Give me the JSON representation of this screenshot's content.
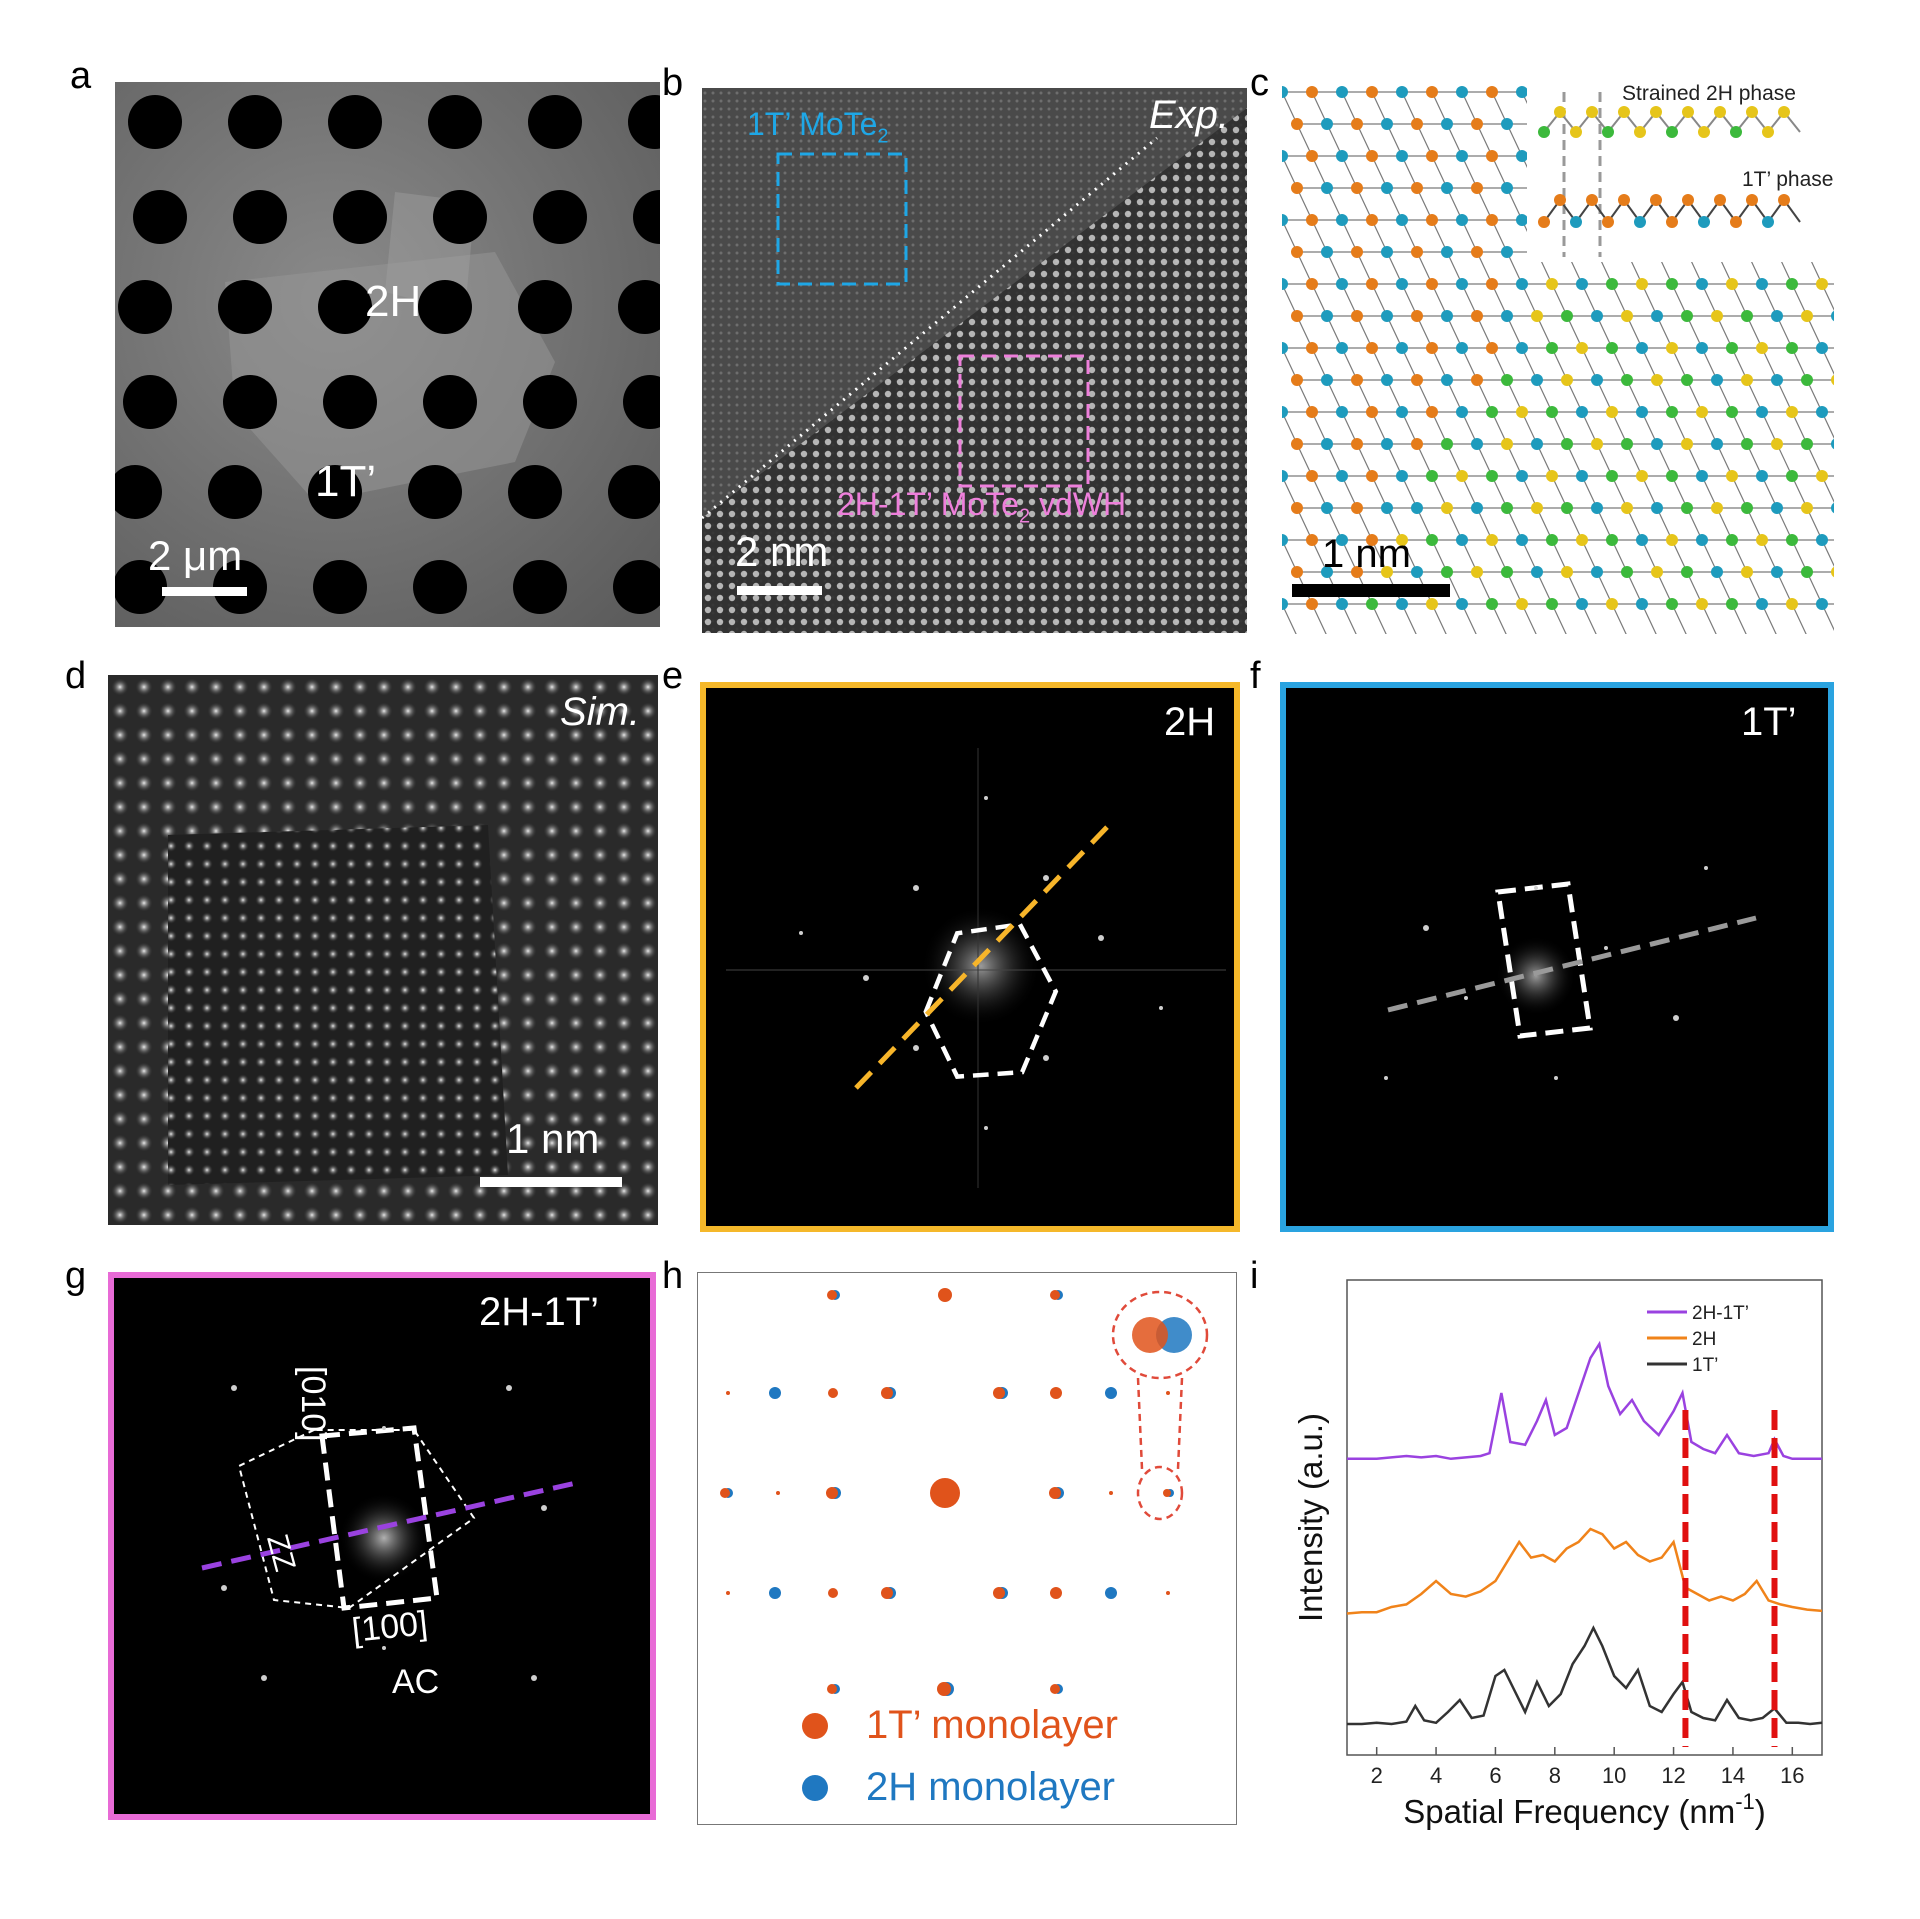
{
  "panel_letters": [
    "a",
    "b",
    "c",
    "d",
    "e",
    "f",
    "g",
    "h",
    "i"
  ],
  "a": {
    "label_2h": "2H",
    "label_1t": "1T’",
    "scale": "2 μm"
  },
  "b": {
    "label_1t": "1T’ MoTe",
    "label_1t_sub": "2",
    "label_vdwh": "2H-1T’ MoTe",
    "label_vdwh_sub": "2",
    "label_vdwh_tail": " vdWH",
    "exp": "Exp.",
    "scale": "2 nm"
  },
  "c": {
    "strained": "Strained 2H phase",
    "phase_1t": "1T’ phase",
    "scale": "1 nm"
  },
  "d": {
    "sim": "Sim.",
    "scale": "1 nm"
  },
  "e": {
    "label": "2H",
    "frame_color": "#f5b82a",
    "line_color": "#f7b52a"
  },
  "f": {
    "label": "1T’",
    "frame_color": "#2aa3e0"
  },
  "g": {
    "label": "2H-1T’",
    "frame_color": "#e86bd6",
    "dir_010": "[010]",
    "dir_100": "[100]",
    "zz": "ZZ",
    "ac": "AC"
  },
  "h": {
    "legend_1t": "1T’ monolayer",
    "legend_2h": "2H monolayer",
    "color_1t": "#e0531b",
    "color_2h": "#1f78c1"
  },
  "chart_data": {
    "type": "line",
    "xlabel": "Spatial Frequency (nm",
    "xlabel_sup": "-1",
    "xlabel_tail": ")",
    "ylabel": "Intensity (a.u.)",
    "xlim": [
      1,
      17
    ],
    "xticks": [
      "2",
      "4",
      "6",
      "8",
      "10",
      "12",
      "14",
      "16"
    ],
    "legend": [
      "2H-1T’",
      "2H",
      "1T’"
    ],
    "reference_lines_x": [
      12.4,
      15.4
    ],
    "series": [
      {
        "name": "2H-1T’",
        "color": "#9a42e0",
        "x": [
          1,
          2,
          3,
          3.5,
          4,
          4.5,
          5,
          5.5,
          5.8,
          6.2,
          6.5,
          7,
          7.4,
          7.7,
          8,
          8.4,
          8.8,
          9.2,
          9.5,
          9.8,
          10.2,
          10.6,
          11,
          11.5,
          12,
          12.3,
          12.6,
          13,
          13.4,
          13.8,
          14.2,
          14.7,
          15.2,
          15.4,
          15.7,
          16,
          16.5,
          17
        ],
        "y": [
          0.08,
          0.08,
          0.1,
          0.09,
          0.1,
          0.08,
          0.09,
          0.1,
          0.12,
          0.55,
          0.2,
          0.18,
          0.35,
          0.5,
          0.25,
          0.3,
          0.55,
          0.8,
          0.9,
          0.6,
          0.4,
          0.5,
          0.35,
          0.25,
          0.42,
          0.55,
          0.2,
          0.15,
          0.12,
          0.25,
          0.12,
          0.1,
          0.12,
          0.22,
          0.1,
          0.08,
          0.08,
          0.08
        ]
      },
      {
        "name": "2H",
        "color": "#f0831a",
        "x": [
          1,
          1.5,
          2,
          2.5,
          3,
          3.5,
          4,
          4.5,
          5,
          5.5,
          6,
          6.4,
          6.8,
          7.2,
          7.6,
          8,
          8.4,
          8.8,
          9.2,
          9.6,
          10,
          10.4,
          10.8,
          11.2,
          11.6,
          12,
          12.4,
          12.8,
          13.2,
          13.6,
          14,
          14.4,
          14.8,
          15.2,
          15.6,
          16,
          16.5,
          17
        ],
        "y": [
          0.05,
          0.06,
          0.06,
          0.1,
          0.12,
          0.2,
          0.3,
          0.2,
          0.18,
          0.22,
          0.3,
          0.45,
          0.6,
          0.48,
          0.5,
          0.45,
          0.55,
          0.6,
          0.7,
          0.66,
          0.55,
          0.6,
          0.5,
          0.45,
          0.48,
          0.6,
          0.25,
          0.2,
          0.15,
          0.18,
          0.15,
          0.2,
          0.3,
          0.15,
          0.12,
          0.1,
          0.08,
          0.07
        ]
      },
      {
        "name": "1T’",
        "color": "#333333",
        "x": [
          1,
          1.5,
          2,
          2.5,
          3,
          3.3,
          3.6,
          4,
          4.4,
          4.8,
          5.2,
          5.6,
          6,
          6.3,
          6.6,
          7,
          7.4,
          7.8,
          8.2,
          8.6,
          9,
          9.3,
          9.6,
          10,
          10.4,
          10.8,
          11.2,
          11.6,
          12,
          12.3,
          12.6,
          13,
          13.4,
          13.8,
          14.2,
          14.6,
          15,
          15.4,
          15.8,
          16.2,
          16.6,
          17
        ],
        "y": [
          0.05,
          0.05,
          0.06,
          0.05,
          0.07,
          0.2,
          0.08,
          0.06,
          0.15,
          0.25,
          0.1,
          0.12,
          0.45,
          0.5,
          0.35,
          0.15,
          0.4,
          0.2,
          0.3,
          0.55,
          0.7,
          0.85,
          0.7,
          0.45,
          0.35,
          0.5,
          0.2,
          0.15,
          0.3,
          0.4,
          0.15,
          0.1,
          0.08,
          0.25,
          0.1,
          0.08,
          0.1,
          0.18,
          0.06,
          0.06,
          0.05,
          0.06
        ]
      }
    ]
  }
}
